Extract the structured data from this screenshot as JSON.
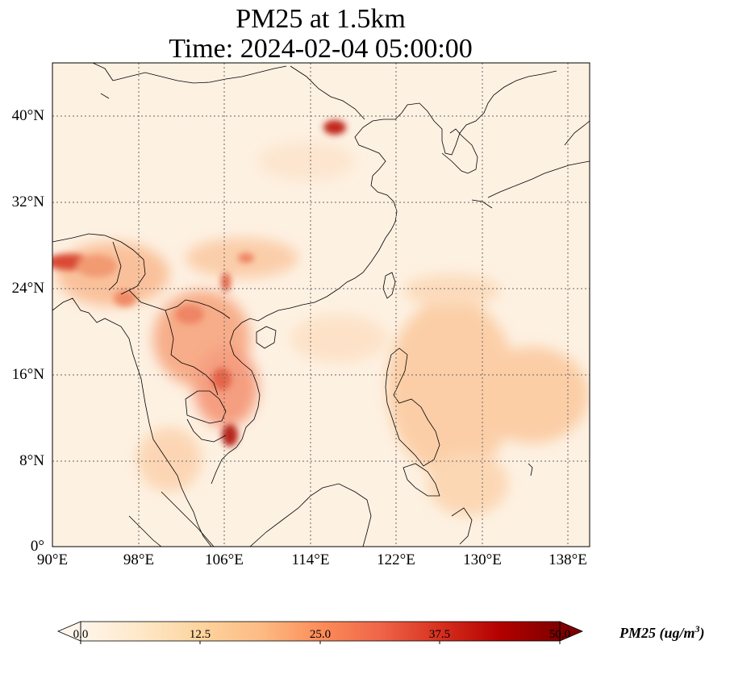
{
  "title_line1": "PM25 at 1.5km",
  "title_line2": "Time: 2024-02-04 05:00:00",
  "lat_labels": [
    "40°N",
    "32°N",
    "24°N",
    "16°N",
    "8°N",
    "0°"
  ],
  "lon_labels": [
    "90°E",
    "98°E",
    "106°E",
    "114°E",
    "122°E",
    "130°E",
    "138°E"
  ],
  "colorbar": {
    "label_text": "PM25 (ug/m",
    "label_sup": "3",
    "label_close": ")",
    "ticks": [
      "0.0",
      "12.5",
      "25.0",
      "37.5",
      "50.0"
    ],
    "colormap": [
      "#fff5eb",
      "#fee6ce",
      "#fdd0a2",
      "#fdae6b",
      "#fd8d3c",
      "#f16913",
      "#d94801",
      "#a63603",
      "#7f2704"
    ]
  }
}
